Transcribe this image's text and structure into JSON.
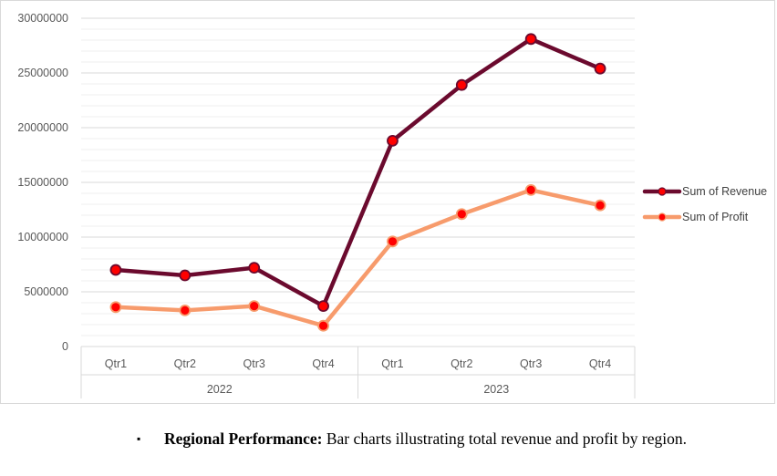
{
  "chart_data": {
    "type": "line",
    "title": "",
    "xlabel": "",
    "ylabel": "",
    "ylim": [
      0,
      30000000
    ],
    "y_ticks": [
      "0",
      "5000000",
      "10000000",
      "15000000",
      "20000000",
      "25000000",
      "30000000"
    ],
    "y_tick_values": [
      0,
      5000000,
      10000000,
      15000000,
      20000000,
      25000000,
      30000000
    ],
    "categories": [
      "Qtr1",
      "Qtr2",
      "Qtr3",
      "Qtr4",
      "Qtr1",
      "Qtr2",
      "Qtr3",
      "Qtr4"
    ],
    "groups": [
      {
        "label": "2022",
        "count": 4
      },
      {
        "label": "2023",
        "count": 4
      }
    ],
    "series": [
      {
        "name": "Sum of Revenue",
        "color": "#6b0a2e",
        "values": [
          7000000,
          6500000,
          7200000,
          3700000,
          18800000,
          23900000,
          28100000,
          25400000
        ]
      },
      {
        "name": "Sum of Profit",
        "color": "#f79b6c",
        "values": [
          3600000,
          3300000,
          3700000,
          1900000,
          9600000,
          12100000,
          14300000,
          12900000
        ]
      }
    ],
    "marker_color": "#ff0000",
    "grid": true,
    "legend_position": "right"
  },
  "bullet": {
    "symbol": "▪",
    "heading": "Regional Performance:",
    "text": " Bar charts illustrating total revenue and profit by region."
  }
}
